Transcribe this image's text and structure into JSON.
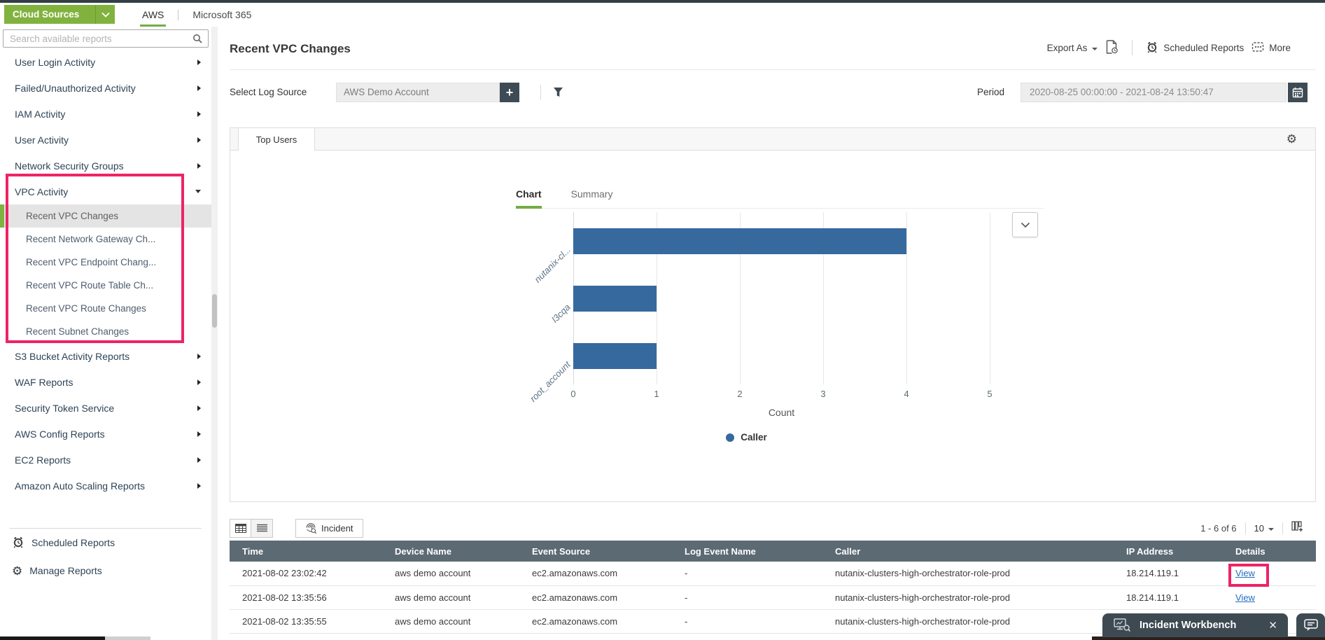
{
  "topbar": {
    "cloud_sources": {
      "label": "Cloud Sources"
    },
    "tabs": [
      {
        "label": "AWS",
        "active": true
      },
      {
        "label": "Microsoft 365",
        "active": false
      }
    ]
  },
  "sidebar": {
    "search_placeholder": "Search available reports",
    "items": [
      {
        "label": "User Login Activity"
      },
      {
        "label": "Failed/Unauthorized Activity"
      },
      {
        "label": "IAM Activity"
      },
      {
        "label": "User Activity"
      },
      {
        "label": "Network Security Groups"
      },
      {
        "label": "VPC Activity",
        "expanded": true,
        "children": [
          {
            "label": "Recent VPC Changes",
            "selected": true
          },
          {
            "label": "Recent Network Gateway Ch..."
          },
          {
            "label": "Recent VPC Endpoint Chang..."
          },
          {
            "label": "Recent VPC Route Table Ch..."
          },
          {
            "label": "Recent VPC Route Changes"
          },
          {
            "label": "Recent Subnet Changes"
          }
        ]
      },
      {
        "label": "S3 Bucket Activity Reports"
      },
      {
        "label": "WAF Reports"
      },
      {
        "label": "Security Token Service"
      },
      {
        "label": "AWS Config Reports"
      },
      {
        "label": "EC2 Reports"
      },
      {
        "label": "Amazon Auto Scaling Reports"
      }
    ],
    "footer": [
      {
        "label": "Scheduled Reports",
        "icon": "alarm-clock"
      },
      {
        "label": "Manage Reports",
        "icon": "gear"
      }
    ]
  },
  "report": {
    "title": "Recent VPC Changes",
    "actions": {
      "export_as": "Export As",
      "scheduled_reports": "Scheduled Reports",
      "more": "More"
    }
  },
  "filters": {
    "log_source_label": "Select Log Source",
    "log_source_value": "AWS Demo Account",
    "add_button": "+",
    "period_label": "Period",
    "period_value": "2020-08-25 00:00:00 - 2021-08-24 13:50:47"
  },
  "panel": {
    "active_tab": "Top Users",
    "view_tabs": [
      {
        "label": "Chart",
        "active": true
      },
      {
        "label": "Summary",
        "active": false
      }
    ]
  },
  "chart_data": {
    "type": "bar",
    "orientation": "horizontal",
    "categories": [
      "nutanix-cl...",
      "l3cqa",
      "root_account"
    ],
    "values": [
      4,
      1,
      1
    ],
    "series": [
      {
        "name": "Caller",
        "values": [
          4,
          1,
          1
        ]
      }
    ],
    "xlabel": "Count",
    "ylabel": "",
    "xlim": [
      0,
      5
    ],
    "xticks": [
      0,
      1,
      2,
      3,
      4,
      5
    ],
    "grid": true,
    "legend": {
      "entries": [
        "Caller"
      ],
      "position": "bottom"
    },
    "bar_color": "#36699e"
  },
  "table": {
    "toolbar": {
      "incident_label": "Incident"
    },
    "pagination": {
      "range_text": "1 - 6 of 6",
      "page_size": "10"
    },
    "columns": [
      "Time",
      "Device Name",
      "Event Source",
      "Log Event Name",
      "Caller",
      "IP Address",
      "Details"
    ],
    "rows": [
      [
        "2021-08-02 23:02:42",
        "aws demo account",
        "ec2.amazonaws.com",
        "-",
        "nutanix-clusters-high-orchestrator-role-prod",
        "18.214.119.1",
        "View"
      ],
      [
        "2021-08-02 13:35:56",
        "aws demo account",
        "ec2.amazonaws.com",
        "-",
        "nutanix-clusters-high-orchestrator-role-prod",
        "18.214.119.1",
        "View"
      ],
      [
        "2021-08-02 13:35:55",
        "aws demo account",
        "ec2.amazonaws.com",
        "-",
        "nutanix-clusters-high-orchestrator-role-prod",
        "",
        ""
      ]
    ]
  },
  "workbench": {
    "title": "Incident Workbench",
    "close_label": "✕"
  },
  "colors": {
    "accent_green": "#7cb342",
    "annotation_pink": "#ed2465",
    "bar_blue": "#36699e",
    "table_header": "#5b6a73",
    "dark_button": "#3e4b54",
    "link_blue": "#1f6fbe"
  }
}
